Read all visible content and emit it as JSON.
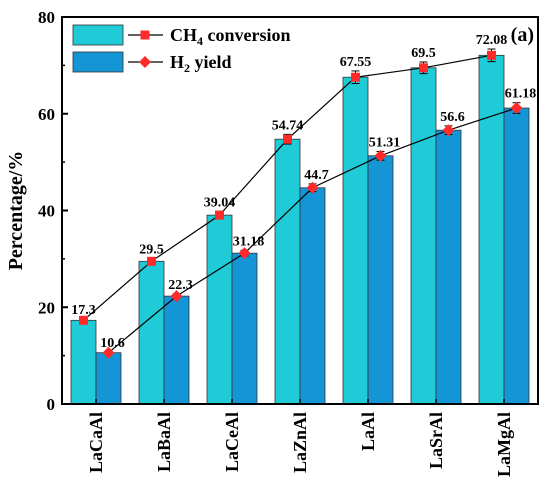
{
  "panel_label": "(a)",
  "chart_data": {
    "type": "bar",
    "ylabel": "Percentage/%",
    "ylim": [
      0,
      80
    ],
    "yticks": [
      "0",
      "20",
      "40",
      "60",
      "80"
    ],
    "categories": [
      "LaCaAl",
      "LaBaAl",
      "LaCeAl",
      "LaZnAl",
      "LaAl",
      "LaSrAl",
      "LaMgAl"
    ],
    "series": [
      {
        "name_base": "CH",
        "name_sub": "4",
        "name_rest": " conversion",
        "bar_color": "#1ecbd6",
        "line_color": "#000000",
        "marker": "square",
        "marker_color": "#ff2a2a",
        "values": [
          17.3,
          29.5,
          39.04,
          54.74,
          67.55,
          69.5,
          72.08
        ],
        "labels": [
          "17.3",
          "29.5",
          "39.04",
          "54.74",
          "67.55",
          "69.5",
          "72.08"
        ],
        "errors": [
          0.3,
          0.6,
          0.8,
          1.0,
          1.3,
          1.2,
          1.3
        ]
      },
      {
        "name_base": "H",
        "name_sub": "2",
        "name_rest": " yield",
        "bar_color": "#1496d6",
        "line_color": "#000000",
        "marker": "diamond",
        "marker_color": "#ff2a2a",
        "values": [
          10.6,
          22.3,
          31.18,
          44.7,
          51.31,
          56.6,
          61.18
        ],
        "labels": [
          "10.6",
          "22.3",
          "31.18",
          "44.7",
          "51.31",
          "56.6",
          "61.18"
        ],
        "errors": [
          0.2,
          0.4,
          0.6,
          0.8,
          0.9,
          0.9,
          1.1
        ]
      }
    ],
    "grid": false,
    "legend": "top-left"
  }
}
